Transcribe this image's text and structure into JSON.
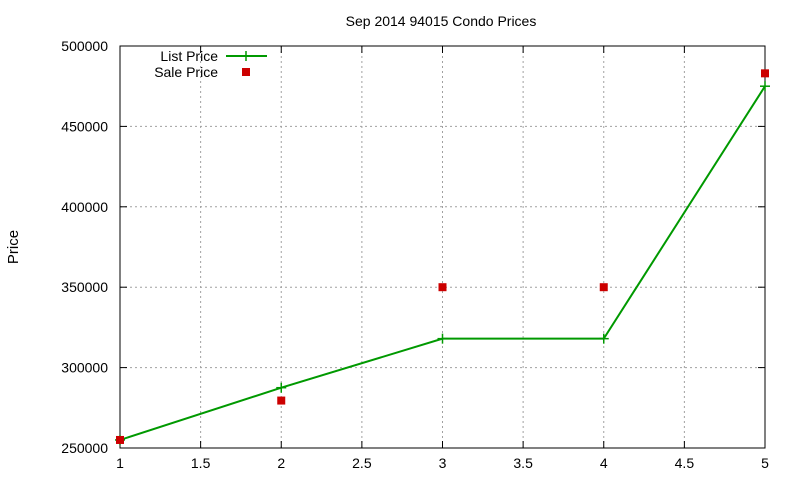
{
  "chart_data": {
    "type": "line",
    "title": "Sep 2014 94015 Condo Prices",
    "xlabel": "",
    "ylabel": "Price",
    "xlim": [
      1,
      5
    ],
    "ylim": [
      250000,
      500000
    ],
    "x_ticks": [
      1,
      1.5,
      2,
      2.5,
      3,
      3.5,
      4,
      4.5,
      5
    ],
    "y_ticks": [
      250000,
      300000,
      350000,
      400000,
      450000,
      500000
    ],
    "grid": true,
    "legend_position": "top-left",
    "series": [
      {
        "name": "List Price",
        "style": "line+cross",
        "color": "#009900",
        "x": [
          1,
          2,
          3,
          4,
          5
        ],
        "y": [
          255000,
          287500,
          318000,
          318000,
          475000
        ]
      },
      {
        "name": "Sale Price",
        "style": "square",
        "color": "#cc0000",
        "x": [
          1,
          2,
          3,
          4,
          5
        ],
        "y": [
          255000,
          279500,
          350000,
          350000,
          483000
        ]
      }
    ]
  }
}
